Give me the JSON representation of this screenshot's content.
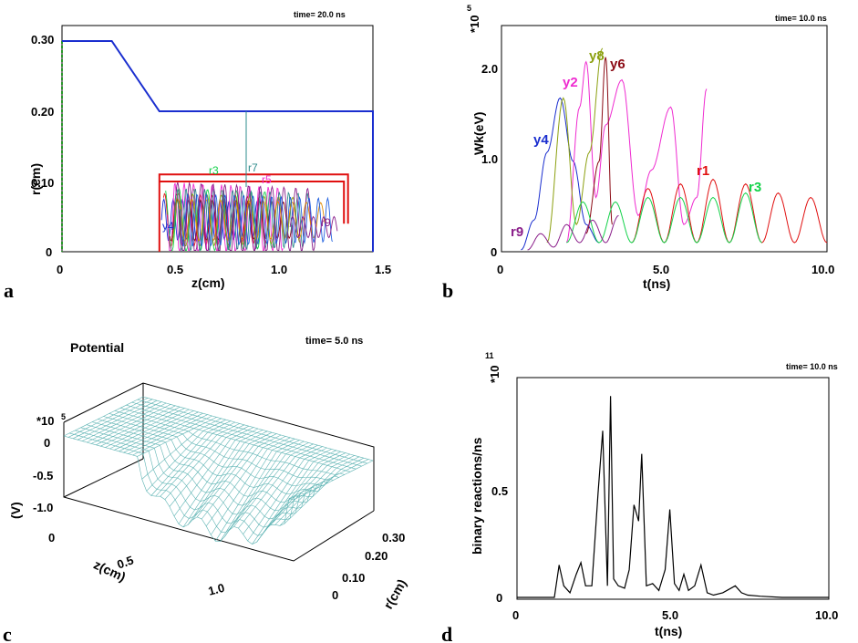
{
  "colors": {
    "blue": "#1a2ecf",
    "red": "#e01010",
    "green": "#14d24a",
    "magenta": "#ef2bd0",
    "darkred": "#8b0a14",
    "olive": "#8ca010",
    "teal": "#2e8c8c",
    "purple": "#8a1e8a",
    "mesh": "#5fb4b4"
  },
  "chart_data": [
    {
      "id": "a",
      "type": "line",
      "panel_label": "a",
      "time_label": "time= 20.0  ns",
      "xlabel": "z(cm)",
      "ylabel": "r(cm)",
      "xlim": [
        0,
        1.5
      ],
      "ylim": [
        0,
        0.3
      ],
      "xticks": [
        "0",
        "0.5",
        "1.0",
        "1.5"
      ],
      "yticks": [
        "0",
        "0.10",
        "0.20",
        "0.30"
      ],
      "wall_profile": {
        "z": [
          0,
          0.24,
          0.47,
          1.5,
          1.5
        ],
        "r": [
          0.3,
          0.3,
          0.2,
          0.2,
          0
        ]
      },
      "beam_boundary": {
        "z": [
          0.47,
          0.47,
          1.38,
          1.38
        ],
        "r": [
          0,
          0.11,
          0.11,
          0.04
        ]
      },
      "beam_boundary_inner": {
        "z": [
          0.47,
          1.36,
          1.36
        ],
        "r": [
          0.1,
          0.1,
          0.04
        ]
      },
      "trajectory_labels": [
        "y4",
        "r3",
        "r7",
        "r5",
        "r9"
      ]
    },
    {
      "id": "b",
      "type": "line",
      "panel_label": "b",
      "time_label": "time= 10.0  ns",
      "xlabel": "t(ns)",
      "ylabel": "Wk(eV)",
      "y_multiplier": "*10",
      "y_exponent": "5",
      "xlim": [
        0,
        10
      ],
      "ylim": [
        0,
        2.5
      ],
      "xticks": [
        "0",
        "5.0",
        "10.0"
      ],
      "yticks": [
        "0",
        "1.0",
        "2.0"
      ],
      "series": [
        {
          "name": "y4",
          "color": "blue",
          "t": [
            0.6,
            1.0,
            1.4,
            1.8,
            2.2,
            2.6,
            3.0
          ],
          "wk": [
            0.02,
            0.35,
            1.1,
            1.7,
            1.0,
            0.3,
            0.1
          ]
        },
        {
          "name": "y2",
          "color": "magenta",
          "t": [
            2.0,
            2.4,
            2.6,
            2.9,
            3.2,
            3.7,
            4.2,
            4.6,
            5.2,
            5.6,
            6.0,
            6.3
          ],
          "wk": [
            0.1,
            1.6,
            2.1,
            0.6,
            1.4,
            1.9,
            0.4,
            0.9,
            1.6,
            0.3,
            0.6,
            1.8
          ]
        },
        {
          "name": "y8",
          "color": "olive",
          "t": [
            1.4,
            1.9,
            2.3,
            2.7,
            3.1
          ],
          "wk": [
            0.1,
            1.7,
            0.3,
            1.1,
            2.25
          ]
        },
        {
          "name": "y6",
          "color": "darkred",
          "t": [
            2.6,
            3.0,
            3.2,
            3.4
          ],
          "wk": [
            0.2,
            1.0,
            2.15,
            0.3
          ]
        },
        {
          "name": "r1",
          "color": "red",
          "t": [
            4.0,
            4.5,
            5.0,
            5.5,
            6.0,
            6.5,
            7.0,
            7.5,
            8.0,
            8.5,
            9.0,
            9.5,
            10.0
          ],
          "wk": [
            0.1,
            0.7,
            0.1,
            0.75,
            0.1,
            0.8,
            0.1,
            0.75,
            0.1,
            0.65,
            0.1,
            0.6,
            0.1
          ]
        },
        {
          "name": "r3",
          "color": "green",
          "t": [
            2.0,
            2.5,
            3.0,
            3.5,
            4.0,
            4.5,
            5.0,
            5.5,
            6.0,
            6.5,
            7.0,
            7.5,
            8.0
          ],
          "wk": [
            0.1,
            0.55,
            0.1,
            0.55,
            0.1,
            0.6,
            0.1,
            0.6,
            0.1,
            0.6,
            0.1,
            0.65,
            0.1
          ]
        },
        {
          "name": "r9",
          "color": "purple",
          "t": [
            0.8,
            1.2,
            1.6,
            2.0,
            2.4,
            2.8,
            3.2,
            3.6
          ],
          "wk": [
            0.02,
            0.2,
            0.05,
            0.3,
            0.1,
            0.35,
            0.1,
            0.4
          ]
        }
      ]
    },
    {
      "id": "c",
      "type": "surface",
      "panel_label": "c",
      "title": "Potential",
      "time_label": "time=  5.0  ns",
      "zlabel": "(V)",
      "z_multiplier": "*10",
      "z_exponent": "5",
      "zticks": [
        "0",
        "-0.5",
        "-1.0"
      ],
      "xlabel": "z(cm)",
      "xticks": [
        "0",
        "0.5",
        "1.0"
      ],
      "ylabel": "r(cm)",
      "yticks": [
        "0",
        "0.10",
        "0.20",
        "0.30"
      ],
      "zlim": [
        -1.0,
        0.1
      ]
    },
    {
      "id": "d",
      "type": "line",
      "panel_label": "d",
      "time_label": "time= 10.0  ns",
      "xlabel": "t(ns)",
      "ylabel": "binary reactions/ns",
      "y_multiplier": "*10",
      "y_exponent": "11",
      "xlim": [
        0,
        10
      ],
      "ylim": [
        0,
        0.95
      ],
      "xticks": [
        "0",
        "5.0",
        "10.0"
      ],
      "yticks": [
        "0",
        "0.5"
      ],
      "t": [
        0,
        1.2,
        1.35,
        1.5,
        1.7,
        1.9,
        2.05,
        2.2,
        2.4,
        2.6,
        2.75,
        2.9,
        3.0,
        3.1,
        3.25,
        3.45,
        3.6,
        3.75,
        3.9,
        4.0,
        4.15,
        4.35,
        4.55,
        4.75,
        4.9,
        5.05,
        5.2,
        5.35,
        5.5,
        5.7,
        5.9,
        6.1,
        6.3,
        6.6,
        7.0,
        7.2,
        7.4,
        7.8,
        8.5,
        10.0
      ],
      "values": [
        0,
        0,
        0.14,
        0.05,
        0.02,
        0.1,
        0.15,
        0.05,
        0.05,
        0.45,
        0.72,
        0.05,
        0.87,
        0.08,
        0.05,
        0.04,
        0.12,
        0.4,
        0.33,
        0.62,
        0.05,
        0.06,
        0.03,
        0.12,
        0.38,
        0.06,
        0.03,
        0.1,
        0.03,
        0.05,
        0.14,
        0.02,
        0.01,
        0.02,
        0.05,
        0.02,
        0.01,
        0.005,
        0,
        0
      ]
    }
  ]
}
